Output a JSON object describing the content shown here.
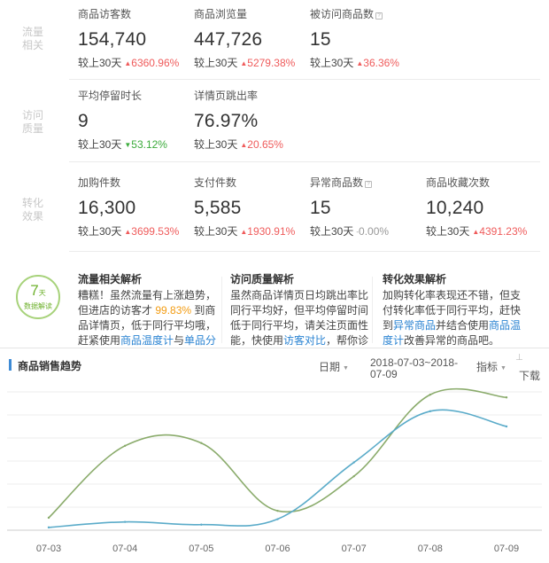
{
  "sections": [
    {
      "label": "流量相关",
      "metrics": [
        {
          "title": "商品访客数",
          "info": false,
          "value": "154,740",
          "compare_label": "较上30天",
          "change": "6360.96%",
          "trend": "up"
        },
        {
          "title": "商品浏览量",
          "info": false,
          "value": "447,726",
          "compare_label": "较上30天",
          "change": "5279.38%",
          "trend": "up"
        },
        {
          "title": "被访问商品数",
          "info": true,
          "value": "15",
          "compare_label": "较上30天",
          "change": "36.36%",
          "trend": "up"
        }
      ]
    },
    {
      "label": "访问质量",
      "metrics": [
        {
          "title": "平均停留时长",
          "info": false,
          "value": "9",
          "compare_label": "较上30天",
          "change": "53.12%",
          "trend": "down"
        },
        {
          "title": "详情页跳出率",
          "info": false,
          "value": "76.97%",
          "compare_label": "较上30天",
          "change": "20.65%",
          "trend": "up"
        }
      ]
    },
    {
      "label": "转化效果",
      "metrics": [
        {
          "title": "加购件数",
          "info": false,
          "value": "16,300",
          "compare_label": "较上30天",
          "change": "3699.53%",
          "trend": "up"
        },
        {
          "title": "支付件数",
          "info": false,
          "value": "5,585",
          "compare_label": "较上30天",
          "change": "1930.91%",
          "trend": "up"
        },
        {
          "title": "异常商品数",
          "info": true,
          "value": "15",
          "compare_label": "较上30天",
          "change": "0.00%",
          "trend": "flat"
        },
        {
          "title": "商品收藏次数",
          "info": false,
          "value": "10,240",
          "compare_label": "较上30天",
          "change": "4391.23%",
          "trend": "up"
        }
      ]
    }
  ],
  "icons": {
    "up": "▲",
    "down": "▼",
    "flat": "-",
    "info": "?",
    "dropdown": "▼",
    "download": "⊥"
  },
  "badge": {
    "number": "7",
    "unit": "天",
    "text": "数据解读"
  },
  "analysis": [
    {
      "title": "流量相关解析",
      "line1": "糟糕！虽然流量有上涨趋势，但进店的访客才",
      "highlight": "99.83%",
      "line2": "到商品详情页，低于同行平均哦，赶紧使用",
      "link1": "商品温度计",
      "mid": "与",
      "link2": "单品分"
    },
    {
      "title": "访问质量解析",
      "line1": "虽然商品详情页日均跳出率比同行平均好，但平均停留时间低于同行平均，请关注页面性能，快使用",
      "link1": "访客对比",
      "line2": "，帮你诊"
    },
    {
      "title": "转化效果解析",
      "line1": "加购转化率表现还不错，但支付转化率低于同行平均，赶快到",
      "link1": "异常商品",
      "mid": "并结合使用",
      "link2": "商品温度计",
      "line2": "改善异常的商品吧。"
    }
  ],
  "chart_header": {
    "title": "商品销售趋势",
    "date_label": "日期",
    "date_range": "2018-07-03~2018-07-09",
    "metric_label": "指标",
    "download_label": "下载"
  },
  "colors": {
    "up": "#ef5b5b",
    "down": "#3bab3b",
    "series_green": "#8aab6b",
    "series_blue": "#5aabc9",
    "accent": "#3e8bd5"
  },
  "chart_data": {
    "type": "line",
    "categories": [
      "07-03",
      "07-04",
      "07-05",
      "07-06",
      "07-07",
      "07-08",
      "07-09"
    ],
    "ylim": [
      0,
      100
    ],
    "grid": true,
    "series": [
      {
        "color": "#8aab6b",
        "values": [
          9,
          61,
          63,
          14,
          39,
          98,
          96
        ]
      },
      {
        "color": "#5aabc9",
        "values": [
          2,
          6,
          4,
          8,
          49,
          86,
          75
        ]
      }
    ]
  }
}
